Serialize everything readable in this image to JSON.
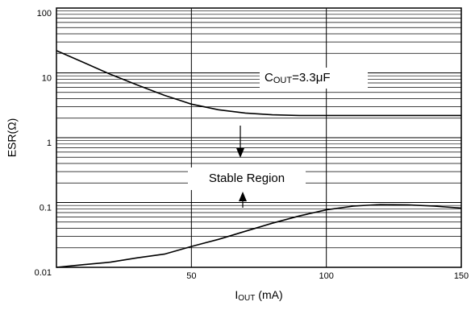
{
  "chart_data": {
    "type": "line",
    "y_label": "ESR(Ω)",
    "x_label": {
      "main": "I",
      "sub": "OUT",
      "rest": " (mA)"
    },
    "annotation": {
      "main": "C",
      "sub": "OUT",
      "rest": "=3.3μF"
    },
    "region_label": "Stable Region",
    "x": [
      0,
      10,
      20,
      30,
      40,
      50,
      60,
      70,
      80,
      90,
      100,
      110,
      120,
      130,
      140,
      150
    ],
    "series": [
      {
        "color": "#000000",
        "values": [
          22,
          14.5,
          9.5,
          6.5,
          4.5,
          3.3,
          2.7,
          2.4,
          2.25,
          2.2,
          2.2,
          2.2,
          2.2,
          2.2,
          2.2,
          2.2
        ]
      },
      {
        "color": "#000000",
        "values": [
          0.01,
          0.011,
          0.012,
          0.014,
          0.016,
          0.021,
          0.027,
          0.036,
          0.048,
          0.062,
          0.077,
          0.088,
          0.093,
          0.092,
          0.088,
          0.082
        ]
      }
    ],
    "xlim": [
      0,
      150
    ],
    "xticks": [
      50,
      100,
      150
    ],
    "ylim": [
      0.01,
      100
    ],
    "yticks": [
      0.01,
      0.1,
      1,
      10,
      100
    ],
    "yminor": [
      0.02,
      0.03,
      0.04,
      0.05,
      0.06,
      0.07,
      0.08,
      0.09,
      0.2,
      0.3,
      0.4,
      0.5,
      0.6,
      0.7,
      0.8,
      0.9,
      2,
      3,
      4,
      5,
      6,
      7,
      8,
      9,
      20,
      30,
      40,
      50,
      60,
      70,
      80,
      90
    ],
    "y_scale": "log",
    "grid": true,
    "grid_color": "#000000"
  }
}
